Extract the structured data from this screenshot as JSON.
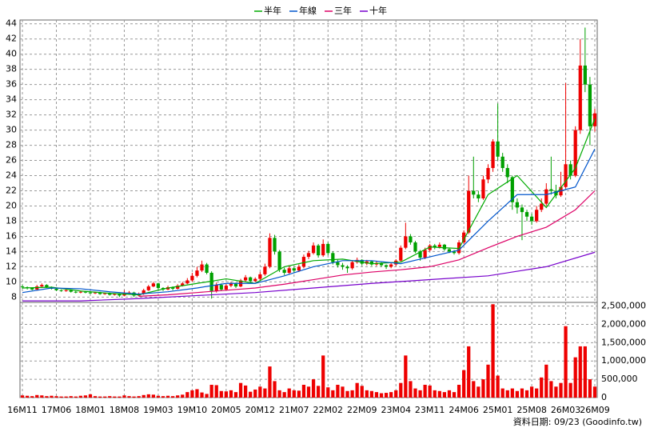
{
  "chart_data": {
    "type": "candlestick",
    "categories": [
      "16M11",
      null,
      null,
      null,
      null,
      null,
      null,
      "17M06",
      null,
      null,
      null,
      null,
      null,
      null,
      "18M01",
      null,
      null,
      null,
      null,
      null,
      null,
      "18M08",
      null,
      null,
      null,
      null,
      null,
      null,
      "19M03",
      null,
      null,
      null,
      null,
      null,
      null,
      "19M10",
      null,
      null,
      null,
      null,
      null,
      null,
      "20M05",
      null,
      null,
      null,
      null,
      null,
      null,
      "20M12",
      null,
      null,
      null,
      null,
      null,
      null,
      "21M07",
      null,
      null,
      null,
      null,
      null,
      null,
      "22M02",
      null,
      null,
      null,
      null,
      null,
      null,
      "22M09",
      null,
      null,
      null,
      null,
      null,
      null,
      "23M04",
      null,
      null,
      null,
      null,
      null,
      null,
      "23M11",
      null,
      null,
      null,
      null,
      null,
      null,
      "24M06",
      null,
      null,
      null,
      null,
      null,
      null,
      "25M01",
      null,
      null,
      null,
      null,
      null,
      null,
      "25M08",
      null,
      null,
      null,
      null,
      null,
      null,
      "26M03",
      null,
      null,
      null,
      null,
      null,
      "26M09"
    ],
    "ohlc": [
      [
        9.4,
        9.6,
        9.1,
        9.3
      ],
      [
        9.3,
        9.4,
        9.0,
        9.2
      ],
      [
        9.2,
        9.3,
        8.9,
        9.0
      ],
      [
        9.0,
        9.6,
        8.9,
        9.4
      ],
      [
        9.4,
        9.8,
        9.3,
        9.6
      ],
      [
        9.6,
        9.7,
        9.2,
        9.3
      ],
      [
        9.3,
        9.4,
        9.0,
        9.1
      ],
      [
        9.1,
        9.2,
        8.8,
        8.9
      ],
      [
        8.9,
        9.0,
        8.7,
        8.8
      ],
      [
        8.8,
        9.0,
        8.7,
        8.9
      ],
      [
        8.9,
        9.0,
        8.6,
        8.7
      ],
      [
        8.7,
        8.8,
        8.5,
        8.6
      ],
      [
        8.6,
        8.8,
        8.5,
        8.7
      ],
      [
        8.7,
        8.8,
        8.5,
        8.6
      ],
      [
        8.6,
        8.7,
        8.4,
        8.5
      ],
      [
        8.5,
        8.7,
        8.4,
        8.6
      ],
      [
        8.6,
        8.7,
        8.3,
        8.4
      ],
      [
        8.4,
        8.6,
        8.3,
        8.5
      ],
      [
        8.5,
        8.6,
        8.2,
        8.3
      ],
      [
        8.3,
        8.5,
        8.2,
        8.4
      ],
      [
        8.4,
        8.5,
        8.0,
        8.2
      ],
      [
        8.2,
        8.9,
        8.1,
        8.5
      ],
      [
        8.5,
        8.8,
        8.4,
        8.6
      ],
      [
        8.6,
        8.7,
        8.0,
        8.2
      ],
      [
        8.2,
        8.6,
        8.1,
        8.4
      ],
      [
        8.4,
        9.1,
        8.3,
        8.9
      ],
      [
        8.9,
        9.6,
        8.8,
        9.4
      ],
      [
        9.4,
        10.0,
        9.3,
        9.8
      ],
      [
        9.8,
        9.9,
        9.0,
        9.2
      ],
      [
        9.2,
        9.3,
        8.8,
        9.0
      ],
      [
        9.0,
        9.5,
        8.9,
        9.3
      ],
      [
        9.3,
        9.4,
        8.9,
        9.1
      ],
      [
        9.1,
        9.7,
        9.0,
        9.5
      ],
      [
        9.5,
        10.0,
        9.4,
        9.8
      ],
      [
        9.8,
        10.5,
        9.7,
        10.2
      ],
      [
        10.2,
        11.2,
        10.0,
        10.8
      ],
      [
        10.8,
        12.0,
        10.6,
        11.5
      ],
      [
        11.5,
        12.8,
        11.3,
        12.3
      ],
      [
        12.3,
        12.5,
        11.0,
        11.2
      ],
      [
        11.2,
        11.4,
        7.8,
        8.8
      ],
      [
        8.8,
        9.9,
        8.6,
        9.6
      ],
      [
        9.6,
        9.8,
        8.8,
        9.0
      ],
      [
        9.0,
        9.7,
        8.9,
        9.5
      ],
      [
        9.5,
        10.0,
        9.3,
        9.8
      ],
      [
        9.8,
        9.9,
        9.2,
        9.4
      ],
      [
        9.4,
        10.4,
        9.3,
        10.2
      ],
      [
        10.2,
        10.9,
        10.0,
        10.6
      ],
      [
        10.6,
        10.7,
        9.9,
        10.1
      ],
      [
        10.1,
        10.6,
        10.0,
        10.4
      ],
      [
        10.4,
        11.3,
        10.2,
        11.0
      ],
      [
        11.0,
        12.4,
        10.8,
        12.0
      ],
      [
        12.0,
        16.4,
        11.8,
        15.8
      ],
      [
        15.8,
        16.2,
        13.6,
        14.0
      ],
      [
        14.0,
        14.2,
        11.3,
        11.6
      ],
      [
        11.6,
        11.9,
        10.9,
        11.2
      ],
      [
        11.2,
        12.1,
        11.0,
        11.8
      ],
      [
        11.8,
        12.0,
        11.2,
        11.5
      ],
      [
        11.5,
        12.3,
        11.3,
        12.0
      ],
      [
        12.0,
        13.6,
        11.8,
        13.3
      ],
      [
        13.3,
        14.1,
        13.0,
        13.8
      ],
      [
        13.8,
        15.2,
        13.6,
        14.8
      ],
      [
        14.8,
        15.0,
        13.2,
        13.5
      ],
      [
        13.5,
        15.6,
        13.3,
        15.0
      ],
      [
        15.0,
        15.2,
        13.5,
        13.8
      ],
      [
        13.8,
        14.0,
        12.3,
        12.6
      ],
      [
        12.6,
        12.9,
        11.9,
        12.2
      ],
      [
        12.2,
        12.5,
        11.6,
        12.0
      ],
      [
        12.0,
        12.2,
        11.2,
        11.8
      ],
      [
        11.8,
        12.8,
        11.6,
        12.6
      ],
      [
        12.6,
        13.2,
        12.4,
        12.9
      ],
      [
        12.9,
        13.0,
        12.2,
        12.4
      ],
      [
        12.4,
        12.9,
        12.2,
        12.7
      ],
      [
        12.7,
        12.8,
        12.1,
        12.3
      ],
      [
        12.3,
        12.7,
        12.1,
        12.5
      ],
      [
        12.5,
        12.6,
        12.0,
        12.2
      ],
      [
        12.2,
        12.3,
        11.7,
        12.0
      ],
      [
        12.0,
        12.5,
        11.8,
        12.3
      ],
      [
        12.3,
        13.0,
        12.1,
        12.8
      ],
      [
        12.8,
        14.8,
        12.6,
        14.5
      ],
      [
        14.5,
        17.8,
        14.3,
        16.0
      ],
      [
        16.0,
        16.3,
        14.9,
        15.2
      ],
      [
        15.2,
        15.4,
        13.8,
        14.0
      ],
      [
        14.0,
        14.2,
        12.8,
        13.2
      ],
      [
        13.2,
        14.5,
        13.0,
        14.2
      ],
      [
        14.2,
        15.0,
        14.0,
        14.8
      ],
      [
        14.8,
        15.0,
        14.3,
        14.6
      ],
      [
        14.6,
        15.2,
        14.4,
        14.9
      ],
      [
        14.9,
        15.0,
        14.1,
        14.3
      ],
      [
        14.3,
        14.5,
        13.8,
        14.0
      ],
      [
        14.0,
        14.2,
        13.6,
        13.8
      ],
      [
        13.8,
        15.5,
        13.6,
        15.2
      ],
      [
        15.2,
        16.8,
        15.0,
        16.5
      ],
      [
        16.5,
        24.0,
        16.3,
        22.0
      ],
      [
        22.0,
        26.5,
        21.0,
        21.5
      ],
      [
        21.5,
        22.0,
        20.5,
        21.0
      ],
      [
        21.0,
        24.0,
        20.8,
        23.5
      ],
      [
        23.5,
        25.5,
        23.0,
        25.0
      ],
      [
        25.0,
        28.8,
        24.5,
        28.5
      ],
      [
        28.5,
        33.5,
        26.0,
        26.5
      ],
      [
        26.5,
        27.0,
        24.5,
        25.0
      ],
      [
        25.0,
        25.5,
        23.0,
        23.8
      ],
      [
        23.8,
        24.0,
        19.5,
        20.5
      ],
      [
        20.5,
        21.0,
        19.0,
        19.8
      ],
      [
        19.8,
        20.2,
        15.5,
        19.2
      ],
      [
        19.2,
        19.5,
        18.0,
        18.6
      ],
      [
        18.6,
        19.0,
        17.5,
        18.0
      ],
      [
        18.0,
        20.0,
        17.8,
        19.5
      ],
      [
        19.5,
        21.0,
        19.2,
        20.3
      ],
      [
        20.3,
        23.0,
        20.0,
        22.2
      ],
      [
        22.2,
        26.5,
        21.5,
        22.0
      ],
      [
        22.0,
        22.8,
        21.0,
        21.4
      ],
      [
        21.4,
        24.5,
        21.2,
        22.5
      ],
      [
        22.5,
        36.2,
        22.3,
        25.5
      ],
      [
        25.5,
        26.0,
        23.5,
        24.0
      ],
      [
        24.0,
        30.5,
        23.8,
        30.0
      ],
      [
        30.0,
        42.0,
        29.5,
        38.5
      ],
      [
        38.5,
        43.5,
        35.0,
        36.0
      ],
      [
        36.0,
        37.0,
        28.0,
        30.5
      ],
      [
        30.5,
        32.8,
        29.8,
        32.2
      ]
    ],
    "volume": [
      60000,
      50000,
      40000,
      70000,
      60000,
      40000,
      50000,
      40000,
      30000,
      30000,
      40000,
      30000,
      50000,
      60000,
      90000,
      40000,
      30000,
      30000,
      40000,
      30000,
      30000,
      60000,
      40000,
      30000,
      40000,
      70000,
      90000,
      80000,
      50000,
      40000,
      50000,
      40000,
      60000,
      80000,
      150000,
      200000,
      230000,
      140000,
      100000,
      350000,
      340000,
      180000,
      170000,
      200000,
      150000,
      400000,
      330000,
      160000,
      220000,
      300000,
      250000,
      850000,
      450000,
      200000,
      150000,
      250000,
      200000,
      190000,
      350000,
      300000,
      500000,
      320000,
      1150000,
      280000,
      200000,
      350000,
      300000,
      180000,
      200000,
      400000,
      320000,
      200000,
      180000,
      150000,
      120000,
      130000,
      150000,
      200000,
      400000,
      1150000,
      450000,
      250000,
      200000,
      350000,
      330000,
      200000,
      180000,
      150000,
      200000,
      150000,
      350000,
      750000,
      1400000,
      450000,
      300000,
      500000,
      900000,
      2550000,
      600000,
      250000,
      200000,
      250000,
      180000,
      250000,
      200000,
      300000,
      250000,
      550000,
      900000,
      450000,
      300000,
      400000,
      1950000,
      400000,
      1100000,
      1400000,
      1400000,
      500000,
      300000
    ],
    "up_color": "#ee0000",
    "down_color": "#00a000",
    "volume_color": "#ee0000",
    "moving_averages": [
      {
        "name": "半年",
        "color": "#00aa00",
        "x": [
          0,
          6,
          12,
          18,
          24,
          30,
          36,
          42,
          48,
          54,
          60,
          66,
          72,
          78,
          84,
          90,
          96,
          102,
          108,
          114,
          118
        ],
        "values": [
          9.2,
          9.3,
          8.8,
          8.5,
          8.3,
          9.2,
          9.8,
          10.4,
          9.8,
          12.0,
          12.8,
          13.0,
          12.4,
          12.6,
          14.6,
          14.4,
          21.5,
          24.0,
          19.8,
          25.0,
          31.5
        ]
      },
      {
        "name": "年線",
        "color": "#0055cc",
        "x": [
          0,
          6,
          12,
          18,
          24,
          30,
          36,
          42,
          48,
          54,
          60,
          66,
          72,
          78,
          84,
          90,
          96,
          102,
          108,
          114,
          118
        ],
        "values": [
          8.6,
          9.2,
          9.1,
          8.7,
          8.4,
          8.7,
          9.2,
          9.8,
          9.8,
          10.8,
          12.0,
          12.8,
          12.8,
          12.4,
          13.3,
          14.2,
          18.0,
          21.5,
          21.5,
          22.5,
          27.5
        ]
      },
      {
        "name": "三年",
        "color": "#dd0066",
        "x": [
          24,
          30,
          36,
          42,
          48,
          54,
          60,
          66,
          72,
          78,
          84,
          90,
          96,
          102,
          108,
          114,
          118
        ],
        "values": [
          8.1,
          8.3,
          8.6,
          8.9,
          9.2,
          9.7,
          10.3,
          10.9,
          11.3,
          11.6,
          12.0,
          12.9,
          14.5,
          16.0,
          17.2,
          19.5,
          22.0
        ]
      },
      {
        "name": "十年",
        "color": "#7700cc",
        "x": [
          0,
          12,
          24,
          36,
          48,
          60,
          72,
          84,
          96,
          108,
          118
        ],
        "values": [
          7.5,
          7.5,
          7.8,
          8.2,
          8.6,
          9.2,
          9.8,
          10.3,
          10.8,
          12.0,
          13.9
        ]
      }
    ],
    "ylim": [
      7.3,
      44.5
    ],
    "yticks": [
      8,
      10,
      12,
      14,
      16,
      18,
      20,
      22,
      24,
      26,
      28,
      30,
      32,
      34,
      36,
      38,
      40,
      42,
      44
    ],
    "volume_ylim": [
      0,
      2600000
    ],
    "volume_yticks": [
      0,
      {
        "value": 500000,
        "label": "500,000"
      },
      {
        "value": 1000000,
        "label": "1,000,000"
      },
      {
        "value": 1500000,
        "label": "1,500,000"
      },
      {
        "value": 2000000,
        "label": "2,000,000"
      },
      {
        "value": 2500000,
        "label": "2,500,000"
      }
    ],
    "grid": true,
    "source": "資料日期: 09/23  (Goodinfo.tw)"
  }
}
